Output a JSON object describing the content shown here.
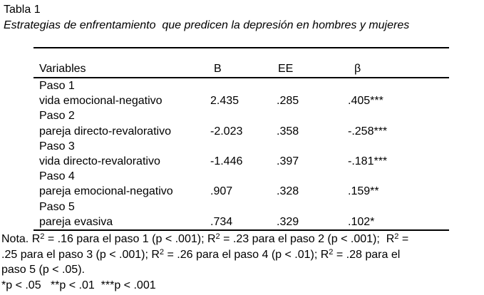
{
  "title": "Tabla 1",
  "subtitle": "Estrategias de enfrentamiento  que predicen la depresión en hombres y mujeres",
  "colors": {
    "text": "#000000",
    "background": "#ffffff",
    "rule": "#000000"
  },
  "table": {
    "headers": [
      "Variables",
      "B",
      "EE",
      "β"
    ],
    "rows": [
      {
        "step": "Paso 1"
      },
      {
        "variable": "vida emocional-negativo",
        "b": "2.435",
        "ee": ".285",
        "beta": ".405***"
      },
      {
        "step": "Paso 2"
      },
      {
        "variable": "pareja directo-revalorativo",
        "b": "-2.023",
        "ee": ".358",
        "beta": "-.258***"
      },
      {
        "step": "Paso 3"
      },
      {
        "variable": "vida directo-revalorativo",
        "b": "-1.446",
        "ee": ".397",
        "beta": "-.181***"
      },
      {
        "step": "Paso 4"
      },
      {
        "variable": "pareja emocional-negativo",
        "b": ".907",
        "ee": ".328",
        "beta": ".159**"
      },
      {
        "step": "Paso 5"
      },
      {
        "variable": "pareja evasiva",
        "b": ".734",
        "ee": ".329",
        "beta": ".102*"
      }
    ]
  },
  "note_lines": [
    [
      {
        "t": "Nota. R"
      },
      {
        "t": "2",
        "sup": true
      },
      {
        "t": " = .16 para el paso 1 (p < .001); R"
      },
      {
        "t": "2",
        "sup": true
      },
      {
        "t": " = .23 para el paso 2 (p < .001);  R"
      },
      {
        "t": "2",
        "sup": true
      },
      {
        "t": " ="
      }
    ],
    [
      {
        "t": ".25 para el paso 3 (p < .001); R"
      },
      {
        "t": "2",
        "sup": true
      },
      {
        "t": " = .26 para el paso 4 (p < .01); R"
      },
      {
        "t": "2",
        "sup": true
      },
      {
        "t": " = .28 para el"
      }
    ],
    [
      {
        "t": "paso 5 (p < .05)."
      }
    ],
    [
      {
        "t": "*p < .05   **p < .01  ***p < .001"
      }
    ]
  ]
}
